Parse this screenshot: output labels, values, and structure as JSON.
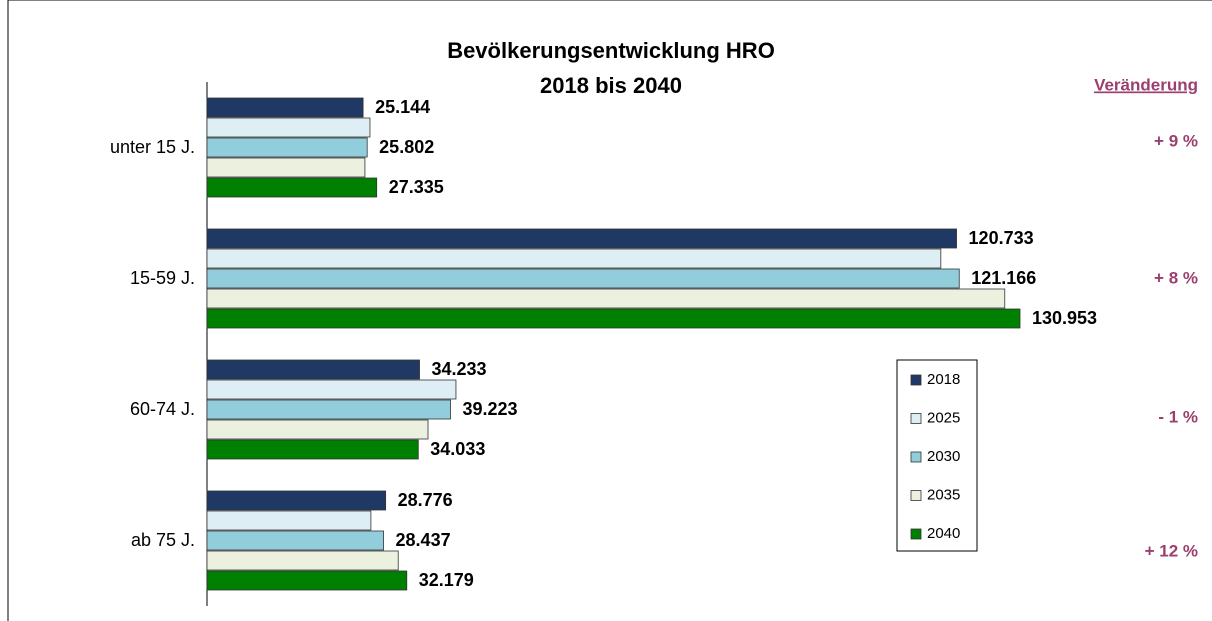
{
  "chart_data": {
    "type": "hbar",
    "title": [
      "Bevölkerungsentwicklung  HRO",
      "2018 bis 2040"
    ],
    "categories": [
      "unter 15 J.",
      "15-59 J.",
      "60-74 J.",
      "ab 75 J."
    ],
    "series": [
      {
        "name": "2018",
        "color": "#1f3864",
        "values": [
          25144,
          120733,
          34233,
          28776
        ],
        "value_labels": [
          "25.144",
          "120.733",
          "34.233",
          "28.776"
        ]
      },
      {
        "name": "2025",
        "color": "#deeef5",
        "values": [
          26250,
          118200,
          40100,
          26400
        ]
      },
      {
        "name": "2030",
        "color": "#92cddc",
        "values": [
          25802,
          121166,
          39223,
          28437
        ],
        "value_labels": [
          "25.802",
          "121.166",
          "39.223",
          "28.437"
        ]
      },
      {
        "name": "2035",
        "color": "#ebf1de",
        "values": [
          25440,
          128500,
          35600,
          30800
        ]
      },
      {
        "name": "2040",
        "color": "#008000",
        "values": [
          27335,
          130953,
          34033,
          32179
        ],
        "value_labels": [
          "27.335",
          "130.953",
          "34.033",
          "32.179"
        ]
      }
    ],
    "change_title": "Veränderung",
    "changes": [
      "+ 9 %",
      "+ 8 %",
      "- 1 %",
      "+ 12 %"
    ]
  }
}
